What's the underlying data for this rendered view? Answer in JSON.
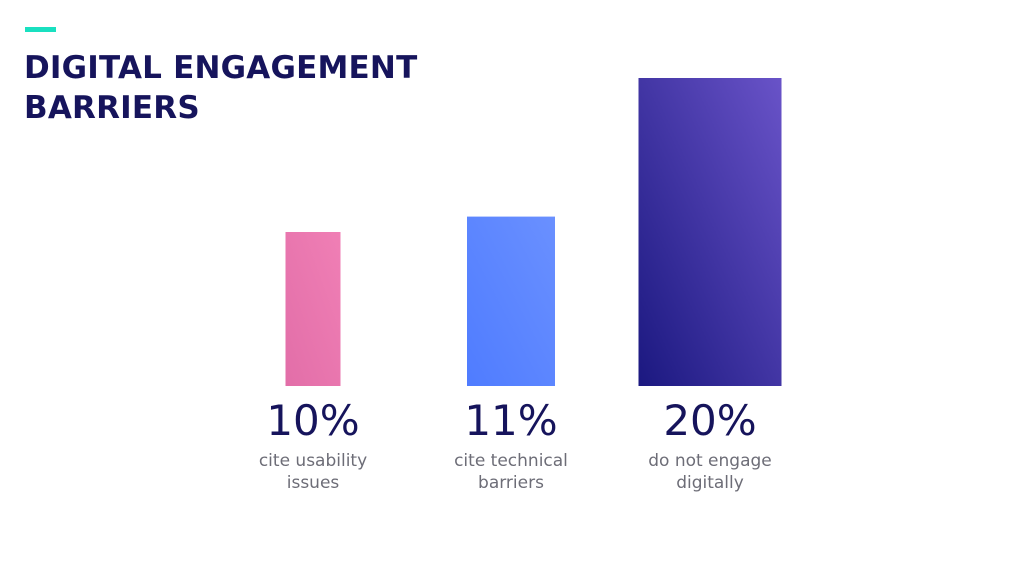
{
  "header": {
    "title": "DIGITAL ENGAGEMENT BARRIERS",
    "accent_color": "#19e0c0",
    "title_color": "#16145c"
  },
  "chart_data": {
    "type": "bar",
    "title": "DIGITAL ENGAGEMENT BARRIERS",
    "xlabel": "",
    "ylabel": "",
    "unit": "%",
    "ylim": [
      0,
      20
    ],
    "grid": false,
    "categories": [
      "cite usability issues",
      "cite technical barriers",
      "do not engage digitally"
    ],
    "values": [
      10,
      11,
      20
    ],
    "value_labels": [
      "10%",
      "11%",
      "20%"
    ],
    "bar_colors": [
      {
        "top": "#f07fb5",
        "bottom": "#e26ea8"
      },
      {
        "top": "#6a90ff",
        "bottom": "#4f7cff"
      },
      {
        "top": "#6953c8",
        "bottom": "#1b1880"
      }
    ]
  }
}
